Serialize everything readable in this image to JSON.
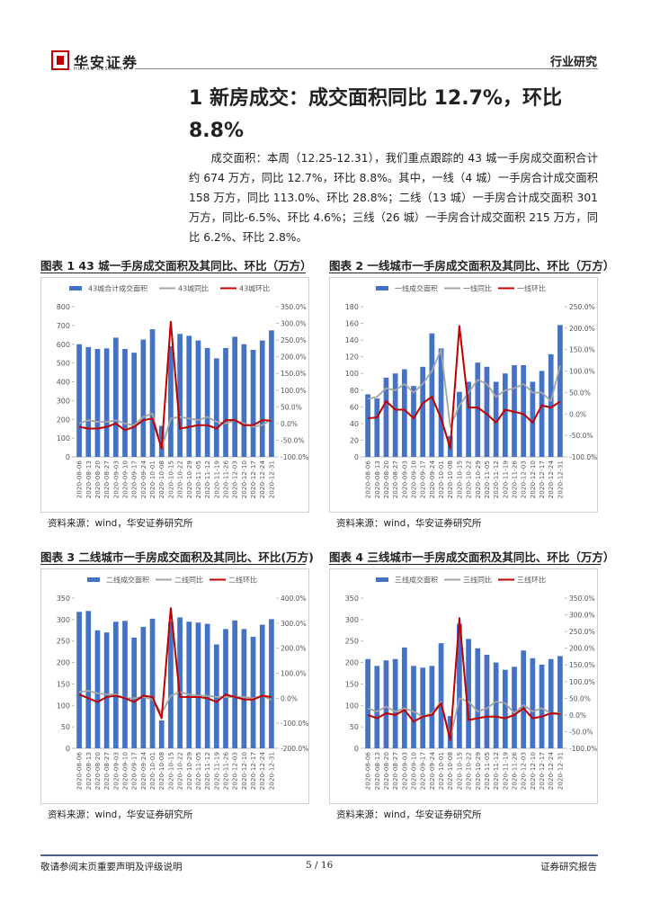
{
  "header": {
    "logo": "华安证券",
    "logo_sub": "HUAAN RESEARCH",
    "section": "行业研究"
  },
  "heading": "1 新房成交：成交面积同比 12.7%，环比 8.8%",
  "paragraph": "成交面积：本周（12.25-12.31），我们重点跟踪的 43 城一手房成交面积合计约 674 万方，同比 12.7%，环比 8.8%。其中，一线（4 城）一手房合计成交面积 158 万方，同比 113.0%、环比 28.8%；二线（13 城）一手房合计成交面积 301 万方，同比-6.5%、环比 4.6%；三线（26 城）一手房合计成交面积 215 万方，同比 6.2%、环比 2.8%。",
  "chart_data": [
    {
      "type": "bar_line",
      "title": "图表 1 43 城一手房成交面积及其同比、环比（万方）",
      "categories": [
        "2020-08-06",
        "2020-08-13",
        "2020-08-20",
        "2020-08-27",
        "2020-09-03",
        "2020-09-10",
        "2020-09-17",
        "2020-09-24",
        "2020-10-01",
        "2020-10-08",
        "2020-10-15",
        "2020-10-22",
        "2020-10-29",
        "2020-11-05",
        "2020-11-12",
        "2020-11-19",
        "2020-11-26",
        "2020-12-03",
        "2020-12-10",
        "2020-12-17",
        "2020-12-24",
        "2020-12-31"
      ],
      "series": [
        {
          "name": "43城合计成交面积",
          "type": "bar",
          "color": "#4472c4",
          "values": [
            600,
            585,
            575,
            578,
            635,
            575,
            555,
            625,
            680,
            165,
            590,
            655,
            645,
            620,
            580,
            525,
            580,
            640,
            600,
            570,
            620,
            674
          ]
        },
        {
          "name": "43城同比",
          "type": "line",
          "axis": "y2",
          "color": "#a5a5a5",
          "values": [
            0,
            10,
            5,
            5,
            10,
            0,
            -5,
            20,
            30,
            -75,
            15,
            20,
            15,
            10,
            20,
            5,
            0,
            10,
            0,
            -10,
            -5,
            12.7
          ]
        },
        {
          "name": "43城环比",
          "type": "line",
          "axis": "y2",
          "color": "#c00000",
          "values": [
            -10,
            -15,
            -15,
            -10,
            0,
            -20,
            -10,
            10,
            15,
            -75,
            305,
            -15,
            -10,
            -5,
            -5,
            -15,
            10,
            10,
            -5,
            -5,
            10,
            8.8
          ]
        }
      ],
      "ylim": [
        0,
        800
      ],
      "yticks": [
        0,
        100,
        200,
        300,
        400,
        500,
        600,
        700,
        800
      ],
      "y2lim": [
        -100,
        350
      ],
      "y2ticks": [
        {
          "value": -100,
          "label": "-100.0%"
        },
        {
          "value": -50,
          "label": "-50.0%"
        },
        {
          "value": 0,
          "label": "0.0%"
        },
        {
          "value": 50,
          "label": "50.0%"
        },
        {
          "value": 100,
          "label": "100.0%"
        },
        {
          "value": 150,
          "label": "150.0%"
        },
        {
          "value": 200,
          "label": "200.0%"
        },
        {
          "value": 250,
          "label": "250.0%"
        },
        {
          "value": 300,
          "label": "300.0%"
        },
        {
          "value": 350,
          "label": "350.0%"
        }
      ],
      "source": "资料来源：wind，华安证券研究所"
    },
    {
      "type": "bar_line",
      "title": "图表 2 一线城市一手房成交面积及其同比、环比（万方）",
      "categories": [
        "2020-08-06",
        "2020-08-13",
        "2020-08-20",
        "2020-08-27",
        "2020-09-03",
        "2020-09-10",
        "2020-09-17",
        "2020-09-24",
        "2020-10-01",
        "2020-10-08",
        "2020-10-15",
        "2020-10-22",
        "2020-10-29",
        "2020-11-05",
        "2020-11-12",
        "2020-11-19",
        "2020-11-26",
        "2020-12-03",
        "2020-12-10",
        "2020-12-17",
        "2020-12-24",
        "2020-12-31"
      ],
      "series": [
        {
          "name": "一线成交面积",
          "type": "bar",
          "color": "#4472c4",
          "values": [
            75,
            70,
            95,
            100,
            105,
            85,
            108,
            148,
            130,
            25,
            78,
            90,
            113,
            108,
            90,
            100,
            110,
            110,
            90,
            103,
            123,
            158
          ]
        },
        {
          "name": "一线同比",
          "type": "line",
          "axis": "y2",
          "color": "#a5a5a5",
          "values": [
            35,
            40,
            60,
            55,
            70,
            50,
            70,
            100,
            150,
            -30,
            20,
            50,
            80,
            70,
            40,
            55,
            60,
            70,
            50,
            50,
            30,
            113
          ]
        },
        {
          "name": "一线环比",
          "type": "line",
          "axis": "y2",
          "color": "#c00000",
          "values": [
            -10,
            -8,
            30,
            10,
            10,
            -10,
            25,
            40,
            -10,
            -80,
            205,
            15,
            15,
            0,
            -20,
            10,
            5,
            0,
            -20,
            20,
            15,
            28.8
          ]
        }
      ],
      "ylim": [
        0,
        180
      ],
      "yticks": [
        0,
        20,
        40,
        60,
        80,
        100,
        120,
        140,
        160,
        180
      ],
      "y2lim": [
        -100,
        250
      ],
      "y2ticks": [
        {
          "value": -100,
          "label": "-100.0%"
        },
        {
          "value": -50,
          "label": "-50.0%"
        },
        {
          "value": 0,
          "label": "0.0%"
        },
        {
          "value": 50,
          "label": "50.0%"
        },
        {
          "value": 100,
          "label": "100.0%"
        },
        {
          "value": 150,
          "label": "150.0%"
        },
        {
          "value": 200,
          "label": "200.0%"
        },
        {
          "value": 250,
          "label": "250.0%"
        }
      ],
      "source": "资料来源：wind，华安证券研究所"
    },
    {
      "type": "bar_line",
      "title": "图表 3 二线城市一手房成交面积及其同比、环比(万方)",
      "categories": [
        "2020-08-06",
        "2020-08-13",
        "2020-08-20",
        "2020-08-27",
        "2020-09-03",
        "2020-09-10",
        "2020-09-17",
        "2020-09-24",
        "2020-10-01",
        "2020-10-08",
        "2020-10-15",
        "2020-10-22",
        "2020-10-29",
        "2020-11-05",
        "2020-11-12",
        "2020-11-19",
        "2020-11-26",
        "2020-12-03",
        "2020-12-10",
        "2020-12-17",
        "2020-12-24",
        "2020-12-31"
      ],
      "series": [
        {
          "name": "二线成交面积",
          "type": "bar",
          "color": "#4472c4",
          "values": [
            318,
            320,
            275,
            270,
            295,
            297,
            258,
            283,
            302,
            65,
            295,
            305,
            295,
            293,
            290,
            242,
            278,
            298,
            278,
            260,
            288,
            301
          ]
        },
        {
          "name": "二线同比",
          "type": "line",
          "axis": "y2",
          "color": "#a5a5a5",
          "values": [
            25,
            30,
            20,
            15,
            15,
            0,
            0,
            5,
            -5,
            -60,
            10,
            25,
            15,
            10,
            10,
            5,
            5,
            5,
            5,
            0,
            10,
            -6.5
          ]
        },
        {
          "name": "二线环比",
          "type": "line",
          "axis": "y2",
          "color": "#c00000",
          "values": [
            15,
            0,
            -15,
            5,
            10,
            0,
            -15,
            10,
            5,
            -80,
            360,
            5,
            5,
            5,
            0,
            -15,
            15,
            5,
            -5,
            -5,
            10,
            4.6
          ]
        }
      ],
      "ylim": [
        0,
        350
      ],
      "yticks": [
        0,
        50,
        100,
        150,
        200,
        250,
        300,
        350
      ],
      "y2lim": [
        -200,
        400
      ],
      "y2ticks": [
        {
          "value": -200,
          "label": "-200.0%"
        },
        {
          "value": -100,
          "label": "-100.0%"
        },
        {
          "value": 0,
          "label": "0.0%"
        },
        {
          "value": 100,
          "label": "100.0%"
        },
        {
          "value": 200,
          "label": "200.0%"
        },
        {
          "value": 300,
          "label": "300.0%"
        },
        {
          "value": 400,
          "label": "400.0%"
        }
      ],
      "source": "资料来源：wind，华安证券研究所"
    },
    {
      "type": "bar_line",
      "title": "图表 4 三线城市一手房成交面积及其同比、环比（万方）",
      "categories": [
        "2020-08-06",
        "2020-08-13",
        "2020-08-20",
        "2020-08-27",
        "2020-09-03",
        "2020-09-10",
        "2020-09-17",
        "2020-09-24",
        "2020-10-01",
        "2020-10-08",
        "2020-10-15",
        "2020-10-22",
        "2020-10-29",
        "2020-11-05",
        "2020-11-12",
        "2020-11-19",
        "2020-11-26",
        "2020-12-03",
        "2020-12-10",
        "2020-12-17",
        "2020-12-24",
        "2020-12-31"
      ],
      "series": [
        {
          "name": "三线成交面积",
          "type": "bar",
          "color": "#4472c4",
          "values": [
            208,
            192,
            205,
            208,
            235,
            192,
            188,
            192,
            245,
            75,
            290,
            255,
            233,
            218,
            200,
            183,
            190,
            228,
            210,
            195,
            208,
            215
          ]
        },
        {
          "name": "三线同比",
          "type": "line",
          "axis": "y2",
          "color": "#a5a5a5",
          "values": [
            20,
            10,
            25,
            10,
            20,
            10,
            -5,
            5,
            40,
            -70,
            50,
            40,
            10,
            20,
            40,
            35,
            5,
            30,
            10,
            20,
            5,
            6.2
          ]
        },
        {
          "name": "三线环比",
          "type": "line",
          "axis": "y2",
          "color": "#c00000",
          "values": [
            0,
            -10,
            5,
            0,
            15,
            -20,
            -5,
            0,
            35,
            -75,
            290,
            -15,
            -10,
            -5,
            -5,
            -10,
            0,
            20,
            -10,
            -5,
            5,
            2.8
          ]
        }
      ],
      "ylim": [
        0,
        350
      ],
      "yticks": [
        0,
        50,
        100,
        150,
        200,
        250,
        300,
        350
      ],
      "y2lim": [
        -100,
        350
      ],
      "y2ticks": [
        {
          "value": -100,
          "label": "-100.0%"
        },
        {
          "value": -50,
          "label": "-50.0%"
        },
        {
          "value": 0,
          "label": "0.0%"
        },
        {
          "value": 50,
          "label": "50.0%"
        },
        {
          "value": 100,
          "label": "100.0%"
        },
        {
          "value": 150,
          "label": "150.0%"
        },
        {
          "value": 200,
          "label": "200.0%"
        },
        {
          "value": 250,
          "label": "250.0%"
        },
        {
          "value": 300,
          "label": "300.0%"
        },
        {
          "value": 350,
          "label": "350.0%"
        }
      ],
      "source": "资料来源：wind，华安证券研究所"
    }
  ],
  "footer": {
    "left": "敬请参阅末页重要声明及评级说明",
    "page": "5 / 16",
    "right": "证券研究报告"
  }
}
